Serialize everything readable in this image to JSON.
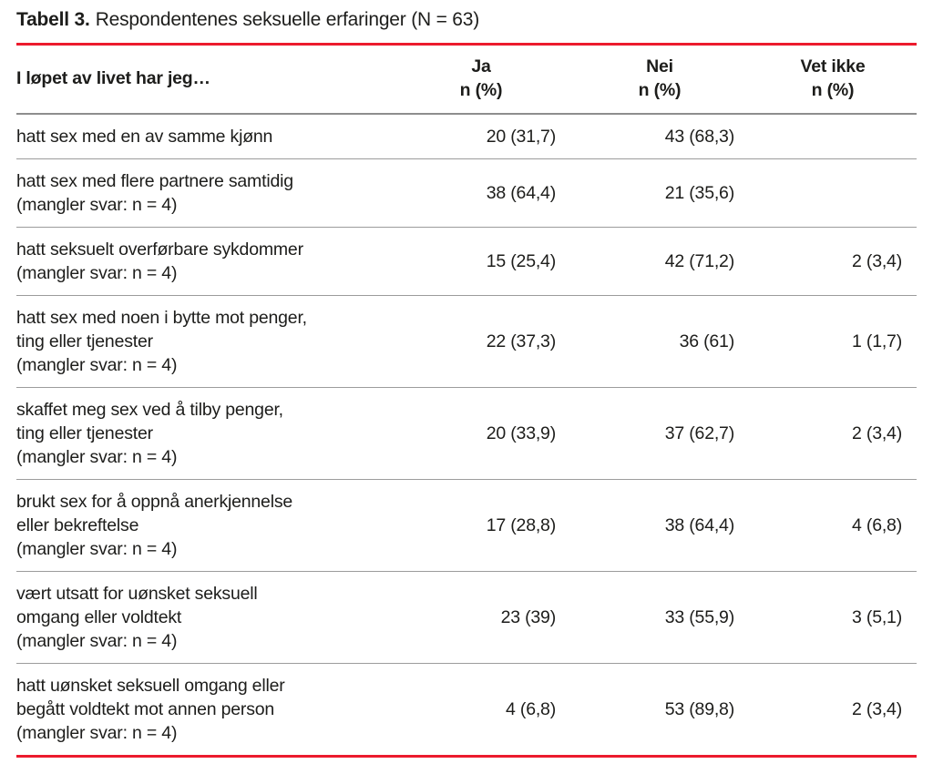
{
  "title": {
    "label": "Tabell 3.",
    "caption": "Respondentenes seksuelle erfaringer (N = 63)"
  },
  "colors": {
    "accent_red": "#EC1B2D",
    "row_divider": "#9C9C9C",
    "header_divider": "#8E8E8E",
    "text": "#1D1D1B"
  },
  "table": {
    "columns": [
      {
        "label": "I løpet av livet har jeg…",
        "sub": ""
      },
      {
        "label": "Ja",
        "sub": "n (%)"
      },
      {
        "label": "Nei",
        "sub": "n (%)"
      },
      {
        "label": "Vet ikke",
        "sub": "n (%)"
      }
    ],
    "rows": [
      {
        "item_lines": [
          "hatt sex med en av samme kjønn"
        ],
        "note": "",
        "ja": "20 (31,7)",
        "nei": "43 (68,3)",
        "vet_ikke": ""
      },
      {
        "item_lines": [
          "hatt sex med flere partnere samtidig"
        ],
        "note": "(mangler svar: n = 4)",
        "ja": "38 (64,4)",
        "nei": "21 (35,6)",
        "vet_ikke": ""
      },
      {
        "item_lines": [
          "hatt seksuelt overførbare sykdommer"
        ],
        "note": "(mangler svar: n = 4)",
        "ja": "15 (25,4)",
        "nei": "42 (71,2)",
        "vet_ikke": "2 (3,4)"
      },
      {
        "item_lines": [
          "hatt sex med noen i bytte mot penger,",
          "ting eller tjenester"
        ],
        "note": "(mangler svar: n = 4)",
        "ja": "22 (37,3)",
        "nei": "36 (61)",
        "vet_ikke": "1 (1,7)"
      },
      {
        "item_lines": [
          "skaffet meg sex ved å tilby penger,",
          "ting eller tjenester"
        ],
        "note": "(mangler svar: n = 4)",
        "ja": "20 (33,9)",
        "nei": "37 (62,7)",
        "vet_ikke": "2 (3,4)"
      },
      {
        "item_lines": [
          "brukt sex for å oppnå anerkjennelse",
          "eller bekreftelse"
        ],
        "note": "(mangler svar: n = 4)",
        "ja": "17 (28,8)",
        "nei": "38 (64,4)",
        "vet_ikke": "4 (6,8)"
      },
      {
        "item_lines": [
          "vært utsatt for uønsket seksuell",
          "omgang eller voldtekt"
        ],
        "note": "(mangler svar: n = 4)",
        "ja": "23 (39)",
        "nei": "33 (55,9)",
        "vet_ikke": "3 (5,1)"
      },
      {
        "item_lines": [
          "hatt uønsket seksuell omgang eller",
          "begått voldtekt mot annen person"
        ],
        "note": "(mangler svar: n = 4)",
        "ja": "4 (6,8)",
        "nei": "53 (89,8)",
        "vet_ikke": "2 (3,4)"
      }
    ]
  }
}
